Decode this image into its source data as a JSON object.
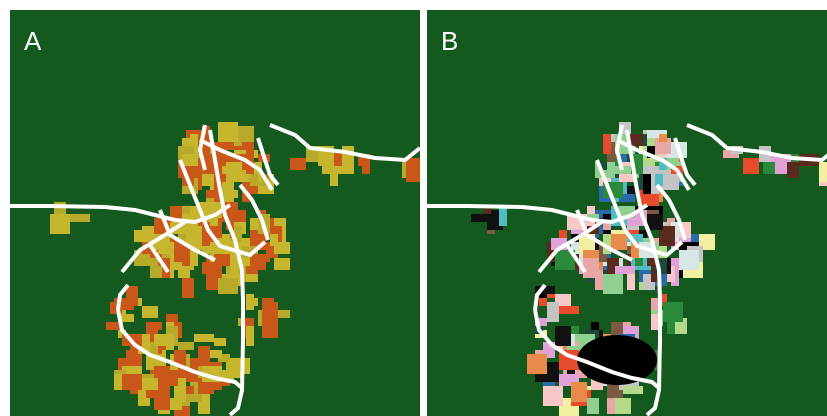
{
  "figure": {
    "background_color": "#145a1e",
    "road_color": "#ffffff",
    "panels": [
      {
        "id": "A",
        "label": "A",
        "palette": [
          "#c5b62e",
          "#c9571a",
          "#c5b62e",
          "#c9571a",
          "#b7a92a"
        ]
      },
      {
        "id": "B",
        "label": "B",
        "palette": [
          "#000000",
          "#7a5a40",
          "#d6e6e4",
          "#e88a4a",
          "#4fbcc4",
          "#e9a6a6",
          "#e0a0d8",
          "#2a8a3a",
          "#8fcf8f",
          "#111111",
          "#c4c4c4",
          "#5b2a1f",
          "#f2f0a0",
          "#2a6aa8",
          "#e64b2b",
          "#b5d98a",
          "#1d4b3a",
          "#f8c8c8"
        ]
      }
    ]
  }
}
